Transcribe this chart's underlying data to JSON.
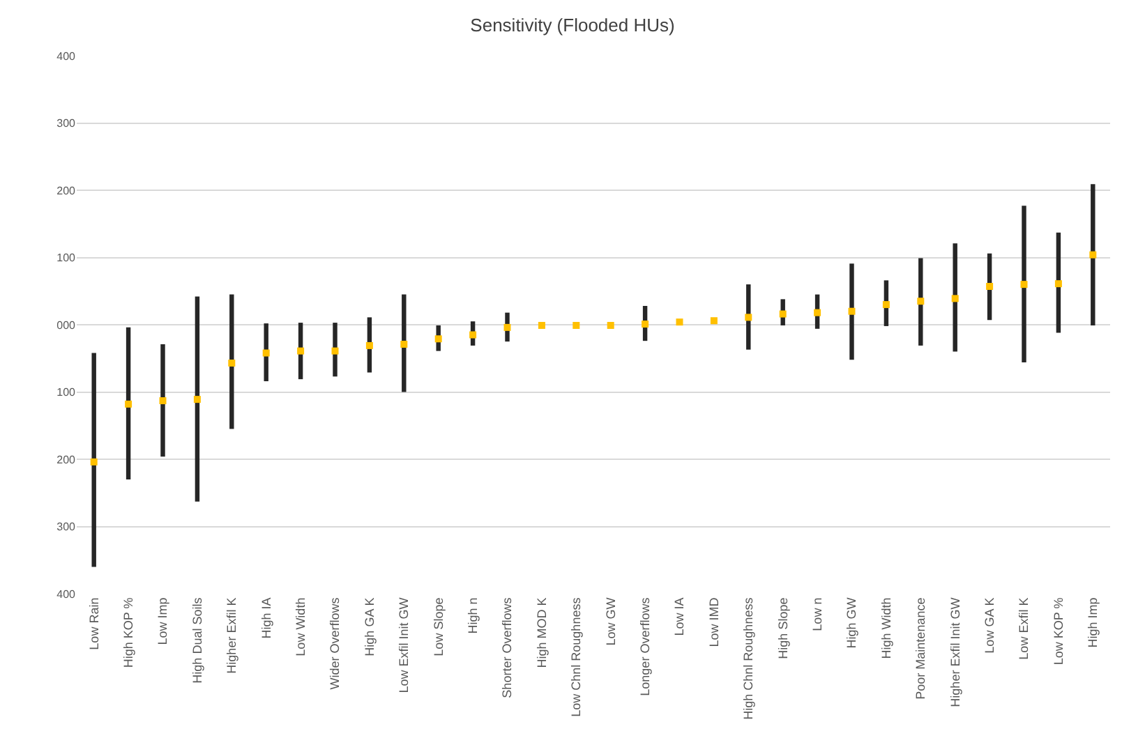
{
  "chart_data": {
    "type": "bar",
    "title": "Sensitivity (Flooded HUs)",
    "categories": [
      "Low Rain",
      "High KOP %",
      "Low Imp",
      "High Dual Soils",
      "Higher Exfil K",
      "High IA",
      "Low Width",
      "Wider Overflows",
      "High GA K",
      "Low Exfil Init GW",
      "Low Slope",
      "High n",
      "Shorter Overflows",
      "High MOD K",
      "Low Chnl Roughness",
      "Low GW",
      "Longer Overflows",
      "Low IA",
      "Low IMD",
      "High Chnl Roughness",
      "High Slope",
      "Low n",
      "High GW",
      "High Width",
      "Poor Maintenance",
      "Higher Exfil Init GW",
      "Low GA K",
      "Low Exfil K",
      "Low KOP %",
      "High Imp"
    ],
    "series": [
      {
        "color": "#262626",
        "base": [
          -360,
          -230,
          -196,
          -263,
          -155,
          -84,
          -81,
          -77,
          -71,
          -100,
          -39,
          -31,
          -25,
          null,
          null,
          null,
          -24,
          null,
          null,
          -37,
          -1,
          -6,
          -52,
          -2,
          -31,
          -40,
          7,
          -56,
          -12,
          -1
        ],
        "values": [
          318,
          226,
          167,
          305,
          200,
          86,
          84,
          80,
          82,
          145,
          38,
          36,
          43,
          null,
          null,
          null,
          52,
          null,
          null,
          97,
          39,
          51,
          143,
          68,
          130,
          161,
          99,
          233,
          149,
          210
        ]
      },
      {
        "type": "scatter",
        "color": "#ffc000",
        "marker": "square",
        "values": [
          -204,
          -118,
          -113,
          -111,
          -57,
          -42,
          -39,
          -39,
          -31,
          -29,
          -21,
          -15,
          -4,
          -1,
          -1,
          -1,
          1,
          4,
          6,
          11,
          16,
          18,
          20,
          30,
          35,
          39,
          57,
          60,
          61,
          104
        ]
      }
    ],
    "ylim": [
      -400,
      400
    ],
    "yticks": [
      {
        "value": 400,
        "label": "400"
      },
      {
        "value": 300,
        "label": "300"
      },
      {
        "value": 200,
        "label": "200"
      },
      {
        "value": 100,
        "label": "100"
      },
      {
        "value": 0,
        "label": "000"
      },
      {
        "value": -100,
        "label": "100"
      },
      {
        "value": -200,
        "label": "200"
      },
      {
        "value": -300,
        "label": "300"
      },
      {
        "value": -400,
        "label": "400"
      }
    ],
    "grid": "y",
    "legend": false
  }
}
